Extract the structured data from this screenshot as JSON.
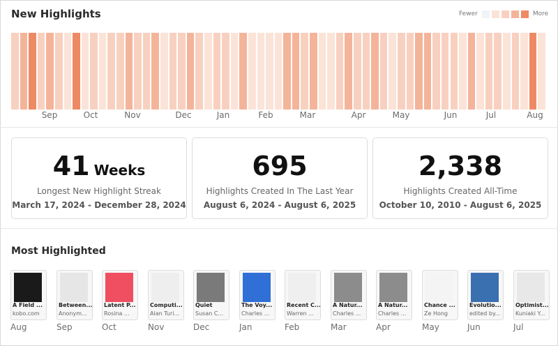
{
  "header": {
    "title": "New Highlights"
  },
  "legend": {
    "fewer_label": "Fewer",
    "more_label": "More",
    "swatches": [
      "#f1f3f6",
      "#fbe3d8",
      "#f8d0bf",
      "#f4b49a",
      "#ee8a63"
    ]
  },
  "heatmap": {
    "levels": [
      2,
      3,
      4,
      2,
      3,
      2,
      1,
      4,
      1,
      2,
      1,
      2,
      2,
      3,
      2,
      2,
      3,
      1,
      2,
      2,
      3,
      2,
      1,
      2,
      2,
      1,
      3,
      1,
      1,
      1,
      1,
      3,
      3,
      2,
      3,
      1,
      1,
      2,
      3,
      2,
      2,
      3,
      2,
      1,
      2,
      2,
      3,
      3,
      2,
      2,
      2,
      1,
      3,
      1,
      2,
      2,
      1,
      2,
      1,
      4,
      1
    ],
    "month_labels": [
      "Sep",
      "Oct",
      "Nov",
      "Dec",
      "Jan",
      "Feb",
      "Mar",
      "Apr",
      "May",
      "Jun",
      "Jul",
      "Aug"
    ]
  },
  "stats": [
    {
      "value": "41",
      "unit": "Weeks",
      "label": "Longest New Highlight Streak",
      "range": "March 17, 2024 - December 28, 2024"
    },
    {
      "value": "695",
      "unit": "",
      "label": "Highlights Created In The Last Year",
      "range": "August 6, 2024 - August 6, 2025"
    },
    {
      "value": "2,338",
      "unit": "",
      "label": "Highlights Created All-Time",
      "range": "October 10, 2010 - August 6, 2025"
    }
  ],
  "most_highlighted": {
    "title": "Most Highlighted",
    "books": [
      {
        "title": "A Field ...",
        "author": "kobo.com",
        "month": "Aug",
        "cover": "#1a1a1a"
      },
      {
        "title": "Between...",
        "author": "Anonym...",
        "month": "Sep",
        "cover": "#e6e6e6"
      },
      {
        "title": "Latent P...",
        "author": "Rosina ...",
        "month": "Oct",
        "cover": "#ef4f61"
      },
      {
        "title": "Computi...",
        "author": "Alan Turi...",
        "month": "Nov",
        "cover": "#eeeeee"
      },
      {
        "title": "Quiet",
        "author": "Susan C...",
        "month": "Dec",
        "cover": "#7a7a7a"
      },
      {
        "title": "The Voy...",
        "author": "Charles ...",
        "month": "Jan",
        "cover": "#2f6fd6"
      },
      {
        "title": "Recent C...",
        "author": "Warren ...",
        "month": "Feb",
        "cover": "#efefef"
      },
      {
        "title": "A Natur...",
        "author": "Charles ...",
        "month": "Mar",
        "cover": "#8c8c8c"
      },
      {
        "title": "A Natur...",
        "author": "Charles ...",
        "month": "Apr",
        "cover": "#8c8c8c"
      },
      {
        "title": "Chance ...",
        "author": "Ze Hong",
        "month": "May",
        "cover": "#f4f4f4"
      },
      {
        "title": "Evolutio...",
        "author": "edited by...",
        "month": "Jun",
        "cover": "#3a6fb0"
      },
      {
        "title": "Optimist...",
        "author": "Kuniaki Y...",
        "month": "Jul",
        "cover": "#e8e8e8"
      }
    ]
  }
}
